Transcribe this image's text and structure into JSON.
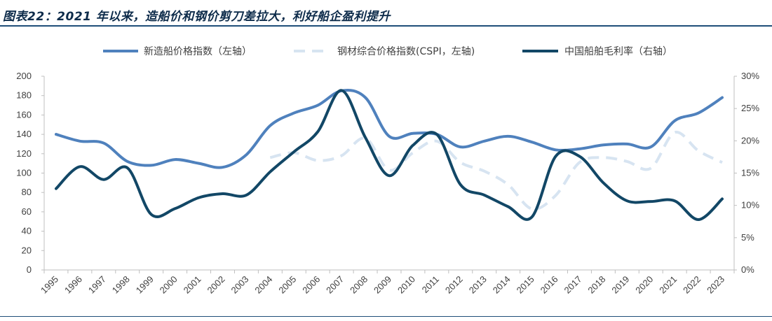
{
  "title": "图表22：2021 年以来，造船价和钢价剪刀差拉大，利好船企盈利提升",
  "colors": {
    "title": "#0d2b4a",
    "rule": "#1f4e79",
    "axis": "#bfbfbf"
  },
  "chart_data": {
    "type": "line",
    "title": "图表22：2021 年以来，造船价和钢价剪刀差拉大，利好船企盈利提升",
    "categories": [
      "1995",
      "1996",
      "1997",
      "1998",
      "1999",
      "2000",
      "2001",
      "2002",
      "2003",
      "2004",
      "2005",
      "2006",
      "2007",
      "2008",
      "2009",
      "2010",
      "2011",
      "2012",
      "2013",
      "2014",
      "2015",
      "2016",
      "2017",
      "2018",
      "2019",
      "2020",
      "2021",
      "2022",
      "2023"
    ],
    "y_left": {
      "min": 0,
      "max": 200,
      "step": 20,
      "ticks": [
        "0",
        "20",
        "40",
        "60",
        "80",
        "100",
        "120",
        "140",
        "160",
        "180",
        "200"
      ]
    },
    "y_right": {
      "min": 0,
      "max": 30,
      "step": 5,
      "ticks": [
        "0%",
        "5%",
        "10%",
        "15%",
        "20%",
        "25%",
        "30%"
      ]
    },
    "legend_position": "top",
    "grid": false,
    "series": [
      {
        "name": "新造船价格指数（左轴）",
        "axis": "left",
        "color": "#4f81bd",
        "dash": false,
        "width": 4,
        "values": [
          140,
          133,
          131,
          112,
          108,
          114,
          110,
          106,
          119,
          149,
          162,
          170,
          185,
          178,
          138,
          141,
          140,
          127,
          133,
          138,
          132,
          124,
          125,
          129,
          130,
          127,
          154,
          162,
          178
        ]
      },
      {
        "name": "钢材综合价格指数(CSPI，左轴)",
        "axis": "left",
        "color": "#d7e4f1",
        "dash": true,
        "width": 4,
        "values": [
          null,
          null,
          null,
          null,
          null,
          null,
          null,
          null,
          null,
          116,
          121,
          113,
          118,
          136,
          103,
          121,
          133,
          111,
          102,
          88,
          63,
          77,
          111,
          116,
          112,
          105,
          142,
          123,
          111
        ]
      },
      {
        "name": "中国船舶毛利率（右轴）",
        "axis": "right",
        "color": "#124766",
        "dash": false,
        "width": 4,
        "values": [
          12.6,
          16.0,
          14.0,
          15.8,
          8.6,
          9.5,
          11.2,
          11.8,
          11.6,
          15.2,
          18.3,
          21.4,
          27.8,
          20.5,
          14.6,
          19.3,
          21.0,
          13.2,
          11.6,
          9.8,
          8.2,
          17.6,
          17.6,
          13.5,
          10.7,
          10.6,
          10.7,
          7.8,
          11.0
        ]
      }
    ]
  }
}
